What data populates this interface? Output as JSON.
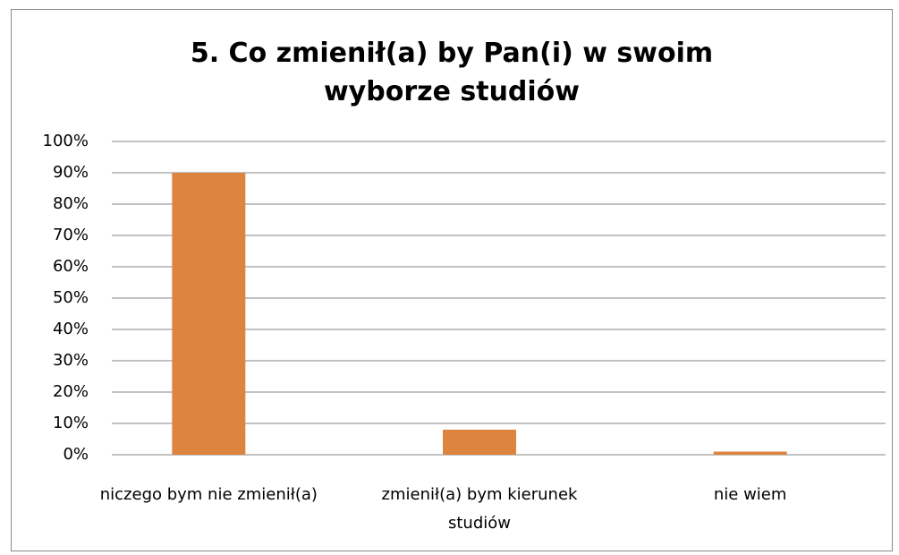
{
  "chart_data": {
    "type": "bar",
    "title": "5. Co zmienił(a) by Pan(i) w swoim wyborze studiów",
    "categories": [
      "niczego bym nie zmienił(a)",
      "zmienił(a) bym kierunek studiów",
      "nie wiem"
    ],
    "values": [
      90,
      8,
      1
    ],
    "color": "#dd8540",
    "ylim": [
      0,
      100
    ],
    "yticks": [
      {
        "value": 0,
        "label": "0%"
      },
      {
        "value": 10,
        "label": "10%"
      },
      {
        "value": 20,
        "label": "20%"
      },
      {
        "value": 30,
        "label": "30%"
      },
      {
        "value": 40,
        "label": "40%"
      },
      {
        "value": 50,
        "label": "50%"
      },
      {
        "value": 60,
        "label": "60%"
      },
      {
        "value": 70,
        "label": "70%"
      },
      {
        "value": 80,
        "label": "80%"
      },
      {
        "value": 90,
        "label": "90%"
      },
      {
        "value": 100,
        "label": "100%"
      }
    ],
    "grid": true
  }
}
